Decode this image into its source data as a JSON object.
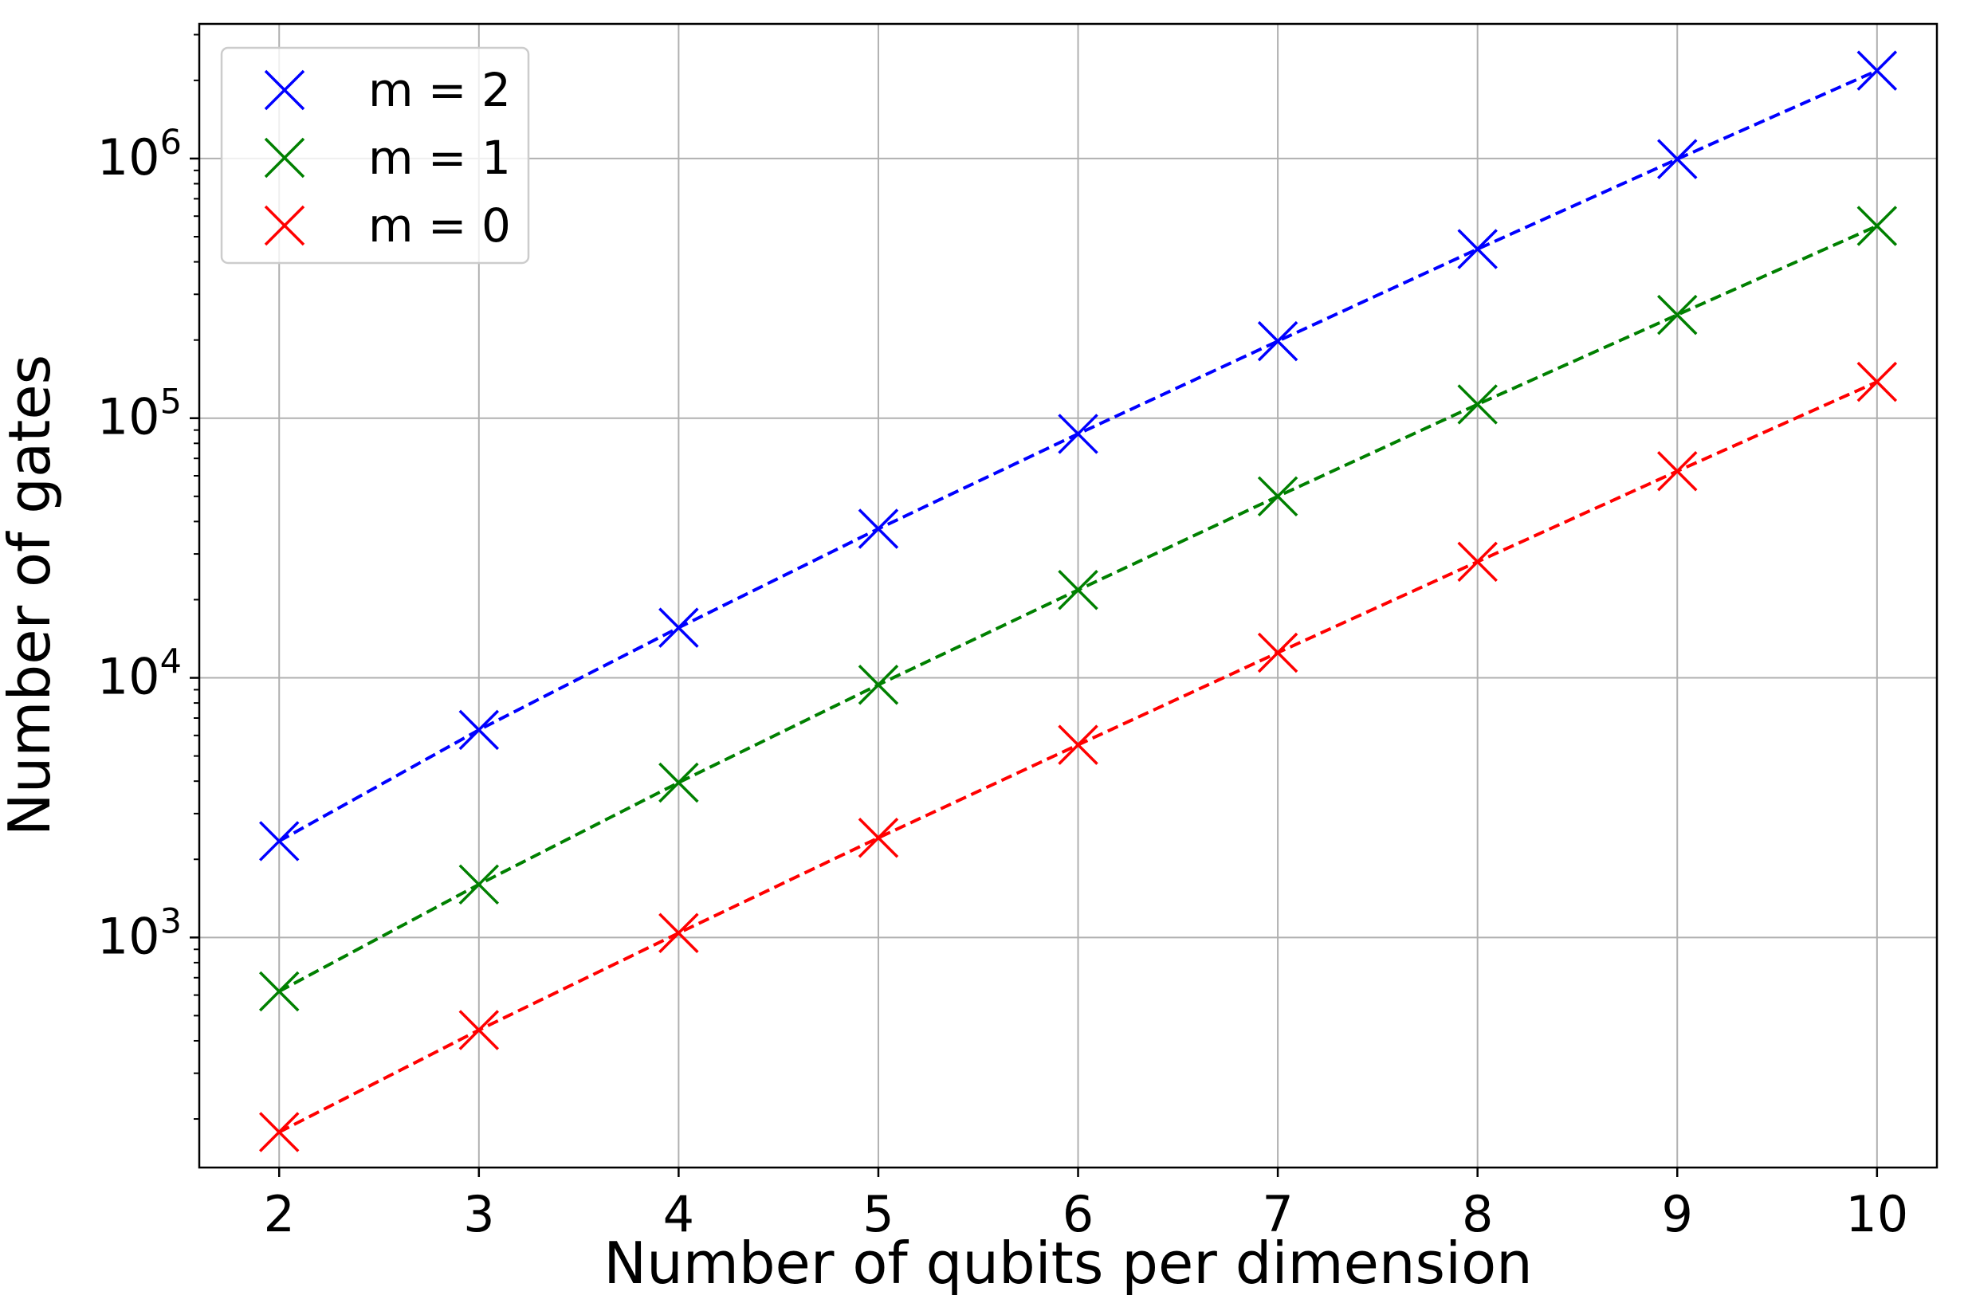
{
  "chart_data": {
    "type": "line",
    "title": "",
    "xlabel": "Number of qubits per dimension",
    "ylabel": "Number of gates",
    "x": [
      2,
      3,
      4,
      5,
      6,
      7,
      8,
      9,
      10
    ],
    "x_ticks": [
      "2",
      "3",
      "4",
      "5",
      "6",
      "7",
      "8",
      "9",
      "10"
    ],
    "xlim": [
      1.6,
      10.3
    ],
    "y_scale": "log",
    "ylim": [
      130,
      3300000
    ],
    "y_ticks": [
      {
        "value": 1000,
        "base": "10",
        "exp": "3"
      },
      {
        "value": 10000,
        "base": "10",
        "exp": "4"
      },
      {
        "value": 100000,
        "base": "10",
        "exp": "5"
      },
      {
        "value": 1000000,
        "base": "10",
        "exp": "6"
      }
    ],
    "grid": true,
    "legend_position": "top-left",
    "marker": "x",
    "line_style": "dashed",
    "series": [
      {
        "name": "m = 2",
        "color": "#0000ff",
        "values": [
          2350,
          6300,
          15600,
          37500,
          87000,
          198000,
          448000,
          995000,
          2180000
        ]
      },
      {
        "name": "m = 1",
        "color": "#008000",
        "values": [
          620,
          1600,
          3950,
          9400,
          21800,
          50000,
          113000,
          250000,
          550000
        ]
      },
      {
        "name": "m = 0",
        "color": "#ff0000",
        "values": [
          178,
          440,
          1040,
          2420,
          5520,
          12500,
          28000,
          62500,
          138000
        ]
      }
    ]
  }
}
